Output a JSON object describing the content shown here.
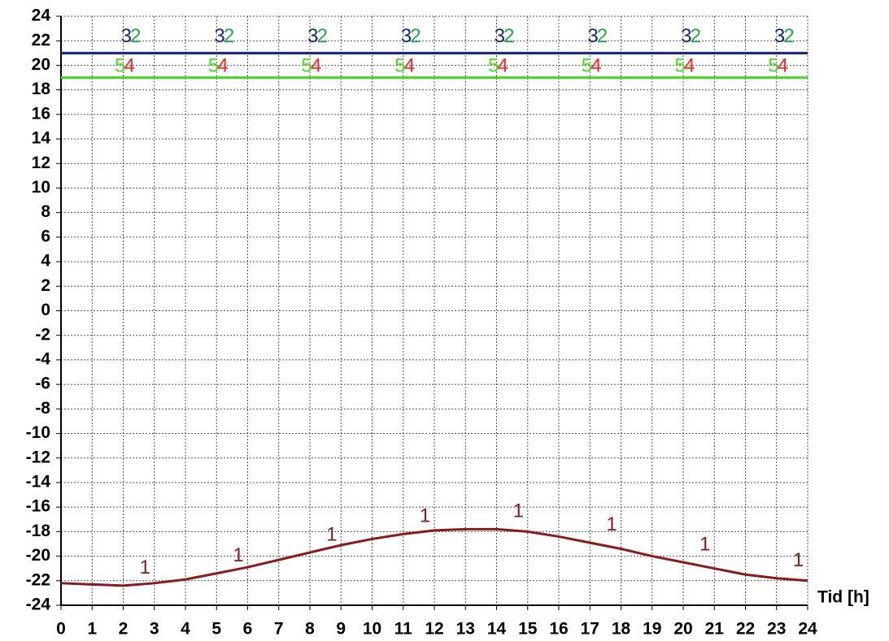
{
  "chart_data": {
    "type": "line",
    "x_label": "Tid [h]",
    "x": [
      0,
      1,
      2,
      3,
      4,
      5,
      6,
      7,
      8,
      9,
      10,
      11,
      12,
      13,
      14,
      15,
      16,
      17,
      18,
      19,
      20,
      21,
      22,
      23,
      24
    ],
    "series": [
      {
        "name": "1",
        "color": "#8b1a1a",
        "values": [
          -22.2,
          -22.3,
          -22.4,
          -22.2,
          -21.9,
          -21.4,
          -20.9,
          -20.3,
          -19.7,
          -19.1,
          -18.6,
          -18.2,
          -17.9,
          -17.8,
          -17.8,
          -18.0,
          -18.4,
          -18.9,
          -19.4,
          -20.0,
          -20.5,
          -21.0,
          -21.5,
          -21.8,
          -22.0
        ]
      },
      {
        "name": "2",
        "color": "#22aa44",
        "values": [
          21,
          21,
          21,
          21,
          21,
          21,
          21,
          21,
          21,
          21,
          21,
          21,
          21,
          21,
          21,
          21,
          21,
          21,
          21,
          21,
          21,
          21,
          21,
          21,
          21
        ]
      },
      {
        "name": "3",
        "color": "#1a237e",
        "values": [
          21,
          21,
          21,
          21,
          21,
          21,
          21,
          21,
          21,
          21,
          21,
          21,
          21,
          21,
          21,
          21,
          21,
          21,
          21,
          21,
          21,
          21,
          21,
          21,
          21
        ]
      },
      {
        "name": "4",
        "color": "#ff2020",
        "values": [
          19,
          19,
          19,
          19,
          19,
          19,
          19,
          19,
          19,
          19,
          19,
          19,
          19,
          19,
          19,
          19,
          19,
          19,
          19,
          19,
          19,
          19,
          19,
          19,
          19
        ]
      },
      {
        "name": "5",
        "color": "#44dd22",
        "values": [
          19,
          19,
          19,
          19,
          19,
          19,
          19,
          19,
          19,
          19,
          19,
          19,
          19,
          19,
          19,
          19,
          19,
          19,
          19,
          19,
          19,
          19,
          19,
          19,
          19
        ]
      }
    ],
    "xlim": [
      0,
      24
    ],
    "xticks": [
      0,
      1,
      2,
      3,
      4,
      5,
      6,
      7,
      8,
      9,
      10,
      11,
      12,
      13,
      14,
      15,
      16,
      17,
      18,
      19,
      20,
      21,
      22,
      23,
      24
    ],
    "ylim": [
      -24,
      24
    ],
    "yticks": [
      -24,
      -22,
      -20,
      -18,
      -16,
      -14,
      -12,
      -10,
      -8,
      -6,
      -4,
      -2,
      0,
      2,
      4,
      6,
      8,
      10,
      12,
      14,
      16,
      18,
      20,
      22,
      24
    ],
    "grid": true
  }
}
